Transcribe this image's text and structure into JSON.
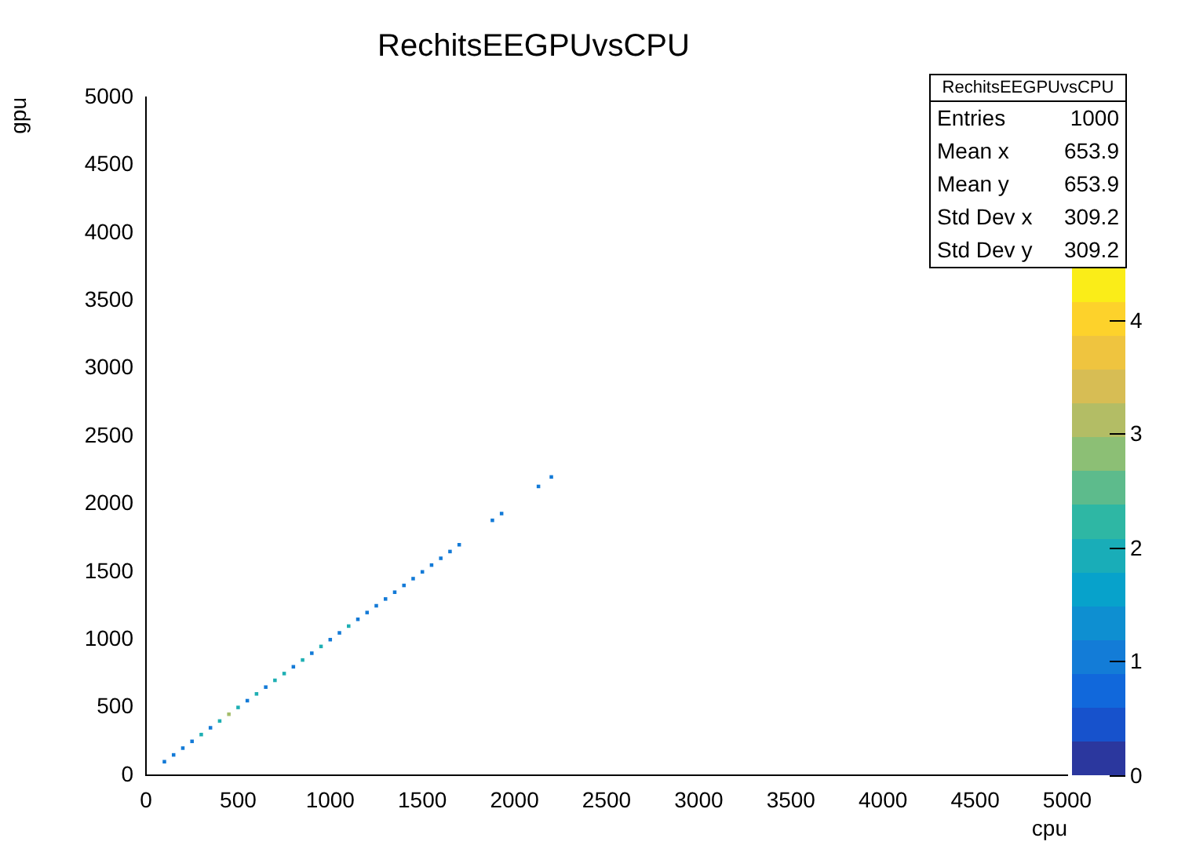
{
  "chart_data": {
    "type": "scatter",
    "title": "RechitsEEGPUvsCPU",
    "xlabel": "cpu",
    "ylabel": "gpu",
    "x": [
      100,
      150,
      200,
      250,
      300,
      350,
      400,
      450,
      500,
      550,
      600,
      650,
      700,
      750,
      800,
      850,
      900,
      950,
      1000,
      1050,
      1100,
      1150,
      1200,
      1250,
      1300,
      1350,
      1400,
      1450,
      1500,
      1550,
      1600,
      1650,
      1700,
      1880,
      1930,
      2130,
      2200
    ],
    "values": [
      100,
      150,
      200,
      250,
      300,
      350,
      400,
      450,
      500,
      550,
      600,
      650,
      700,
      750,
      800,
      850,
      900,
      950,
      1000,
      1050,
      1100,
      1150,
      1200,
      1250,
      1300,
      1350,
      1400,
      1450,
      1500,
      1550,
      1600,
      1650,
      1700,
      1880,
      1930,
      2130,
      2200
    ],
    "cvalues": [
      1,
      1,
      1,
      1,
      2,
      1,
      2,
      3,
      2,
      1,
      2,
      1,
      2,
      2,
      1,
      2,
      1,
      2,
      1,
      1,
      2,
      1,
      1,
      1,
      1,
      1,
      1,
      1,
      1,
      1,
      1,
      1,
      1,
      1,
      1,
      1,
      1
    ],
    "clim": [
      0,
      4.45
    ],
    "cticks": [
      0,
      1,
      2,
      3,
      4
    ],
    "xlim": [
      0,
      5000
    ],
    "xticks": [
      0,
      500,
      1000,
      1500,
      2000,
      2500,
      3000,
      3500,
      4000,
      4500,
      5000
    ],
    "ylim": [
      0,
      5000
    ],
    "yticks": [
      0,
      500,
      1000,
      1500,
      2000,
      2500,
      3000,
      3500,
      4000,
      4500,
      5000
    ],
    "grid": false,
    "legend": false,
    "marker": "square",
    "annotations": [
      "RechitsEEGPUvsCPU",
      "Entries 1000",
      "Mean x 653.9",
      "Mean y 653.9",
      "Std Dev x 309.2",
      "Std Dev y 309.2"
    ]
  }
}
